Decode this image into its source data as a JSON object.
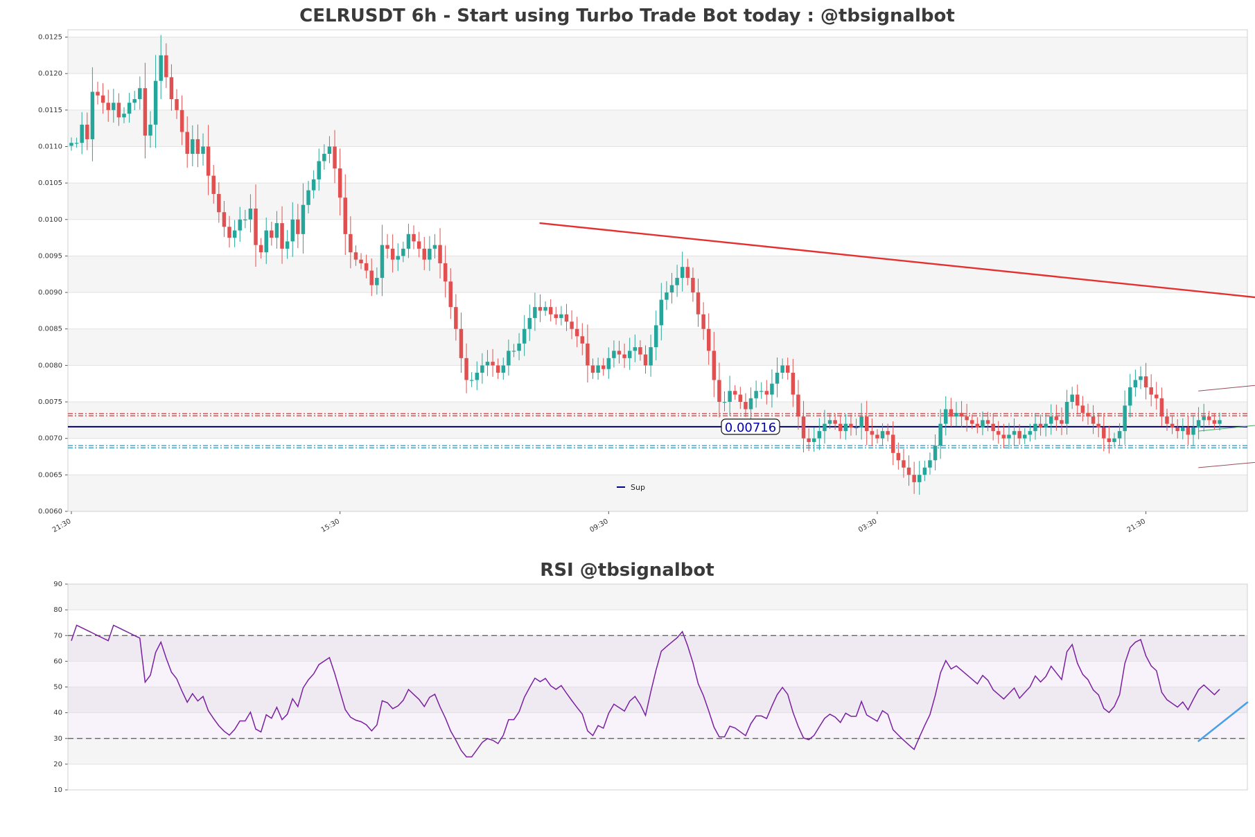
{
  "chart_data": [
    {
      "type": "candlestick",
      "title": "CELRUSDT 6h - Start using Turbo Trade Bot today : @tbsignalbot",
      "ylim": [
        0.006,
        0.0126
      ],
      "yticks": [
        "0.0060",
        "0.0065",
        "0.0070",
        "0.0075",
        "0.0080",
        "0.0085",
        "0.0090",
        "0.0095",
        "0.0100",
        "0.0105",
        "0.0110",
        "0.0115",
        "0.0120",
        "0.0125"
      ],
      "xticks": [
        {
          "label": "21:30",
          "i": 0
        },
        {
          "label": "15:30",
          "i": 51
        },
        {
          "label": "09:30",
          "i": 102
        },
        {
          "label": "03:30",
          "i": 153
        },
        {
          "label": "21:30",
          "i": 204
        },
        {
          "label": "15:30",
          "i": 255
        }
      ],
      "closes": [
        0.01105,
        0.01105,
        0.0113,
        0.0111,
        0.01175,
        0.0117,
        0.0116,
        0.0115,
        0.0116,
        0.0114,
        0.01145,
        0.0116,
        0.01165,
        0.0118,
        0.01115,
        0.0113,
        0.0119,
        0.01225,
        0.01195,
        0.01165,
        0.0115,
        0.0112,
        0.0109,
        0.0111,
        0.0109,
        0.011,
        0.0106,
        0.01035,
        0.0101,
        0.0099,
        0.00975,
        0.00985,
        0.01,
        0.01,
        0.01015,
        0.00965,
        0.00955,
        0.00985,
        0.00975,
        0.00995,
        0.0096,
        0.0097,
        0.01,
        0.0098,
        0.0102,
        0.0104,
        0.01055,
        0.0108,
        0.0109,
        0.011,
        0.0107,
        0.0103,
        0.0098,
        0.00955,
        0.00945,
        0.0094,
        0.0093,
        0.0091,
        0.0092,
        0.00965,
        0.0096,
        0.00945,
        0.0095,
        0.0096,
        0.0098,
        0.0097,
        0.0096,
        0.00945,
        0.0096,
        0.00965,
        0.0094,
        0.00915,
        0.0088,
        0.0085,
        0.0081,
        0.0078,
        0.0078,
        0.0079,
        0.008,
        0.00805,
        0.008,
        0.0079,
        0.008,
        0.0082,
        0.0082,
        0.0083,
        0.0085,
        0.00865,
        0.0088,
        0.00875,
        0.0088,
        0.0087,
        0.00865,
        0.0087,
        0.0086,
        0.0085,
        0.0084,
        0.0083,
        0.008,
        0.0079,
        0.008,
        0.00795,
        0.0081,
        0.0082,
        0.00815,
        0.0081,
        0.0082,
        0.00825,
        0.00815,
        0.008,
        0.00825,
        0.00855,
        0.0089,
        0.009,
        0.0091,
        0.0092,
        0.00935,
        0.0092,
        0.009,
        0.0087,
        0.0085,
        0.0082,
        0.0078,
        0.0075,
        0.0075,
        0.00765,
        0.0076,
        0.0075,
        0.0074,
        0.00755,
        0.00765,
        0.00765,
        0.0076,
        0.00775,
        0.0079,
        0.008,
        0.0079,
        0.0076,
        0.0073,
        0.007,
        0.00695,
        0.007,
        0.0071,
        0.0072,
        0.00725,
        0.0072,
        0.0071,
        0.0072,
        0.00715,
        0.00715,
        0.0073,
        0.0071,
        0.00705,
        0.007,
        0.0071,
        0.00705,
        0.0068,
        0.0067,
        0.0066,
        0.0065,
        0.0064,
        0.0065,
        0.0066,
        0.0067,
        0.0069,
        0.0072,
        0.0074,
        0.0073,
        0.00735,
        0.0073,
        0.00725,
        0.0072,
        0.00715,
        0.00725,
        0.0072,
        0.0071,
        0.00705,
        0.007,
        0.00705,
        0.0071,
        0.007,
        0.00705,
        0.0071,
        0.0072,
        0.00715,
        0.0072,
        0.0073,
        0.00725,
        0.0072,
        0.0075,
        0.0076,
        0.00745,
        0.00735,
        0.0073,
        0.0072,
        0.00715,
        0.007,
        0.00695,
        0.007,
        0.0071,
        0.00745,
        0.0077,
        0.0078,
        0.00785,
        0.0077,
        0.0076,
        0.00755,
        0.0073,
        0.0072,
        0.00715,
        0.0071,
        0.00715,
        0.00705,
        0.00715,
        0.00725,
        0.0073,
        0.00725,
        0.0072,
        0.00725
      ],
      "price_levels": [
        {
          "name": "Sup",
          "value": 0.00716,
          "color": "#00007a",
          "style": "solid"
        },
        {
          "value": 0.00734,
          "color": "#d24a4a",
          "style": "dashed"
        },
        {
          "value": 0.00731,
          "color": "#d24a4a",
          "style": "dashed"
        },
        {
          "value": 0.0069,
          "color": "#3aa0c8",
          "style": "dashed"
        },
        {
          "value": 0.00687,
          "color": "#3aa0c8",
          "style": "dashed"
        }
      ],
      "price_label": "0.00716",
      "legend": [
        {
          "name": "Sup",
          "color": "#00008b"
        }
      ],
      "trendlines": [
        {
          "from": [
            89,
            0.00995
          ],
          "to": [
            272,
            0.00858
          ],
          "color": "#e53030",
          "width": 2.4
        },
        {
          "from": [
            214,
            0.00765
          ],
          "to": [
            272,
            0.00806
          ],
          "color": "#9a4a5a",
          "width": 1
        },
        {
          "from": [
            214,
            0.0071
          ],
          "to": [
            272,
            0.00752
          ],
          "color": "#4aa860",
          "width": 1
        },
        {
          "from": [
            214,
            0.0066
          ],
          "to": [
            272,
            0.00698
          ],
          "color": "#9a4a5a",
          "width": 1
        },
        {
          "from": [
            241,
            0.00683
          ],
          "to": [
            287,
            0.00688
          ],
          "color": "#4aa0e8",
          "width": 2.6
        }
      ],
      "colors": {
        "up": "#26a69a",
        "down": "#e05050"
      }
    },
    {
      "type": "line",
      "title": "RSI @tbsignalbot",
      "ylim": [
        10,
        90
      ],
      "yticks": [
        "10",
        "20",
        "30",
        "40",
        "50",
        "60",
        "70",
        "80",
        "90"
      ],
      "bands": [
        30,
        70
      ],
      "rsi_color": "#7a1fa0",
      "trendline": {
        "from": [
          214,
          29
        ],
        "to": [
          287,
          44
        ],
        "color": "#4aa0e8",
        "width": 2.6
      }
    }
  ]
}
